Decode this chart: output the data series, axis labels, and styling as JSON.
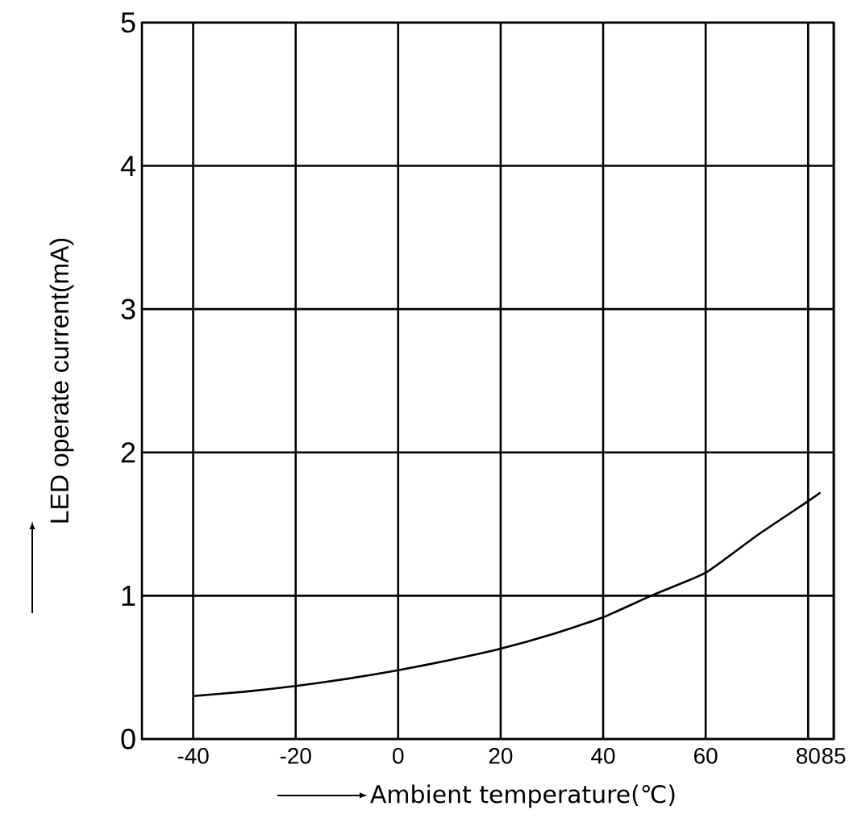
{
  "chart_data": {
    "type": "line",
    "xlabel": "Ambient temperature(℃)",
    "ylabel": "LED operate current(mA)",
    "x": [
      -40,
      -30,
      -20,
      -10,
      0,
      10,
      20,
      30,
      40,
      50,
      60,
      70,
      80,
      82.4
    ],
    "values": [
      0.3,
      0.33,
      0.37,
      0.42,
      0.48,
      0.55,
      0.63,
      0.73,
      0.85,
      1.01,
      1.16,
      1.42,
      1.66,
      1.72
    ],
    "color": "#000000",
    "xlim": [
      -50,
      85
    ],
    "xticks": [
      -40,
      -20,
      0,
      20,
      40,
      60,
      80,
      85
    ],
    "ylim": [
      0,
      5
    ],
    "yticks": [
      0,
      1,
      2,
      3,
      4,
      5
    ],
    "grid": true
  }
}
